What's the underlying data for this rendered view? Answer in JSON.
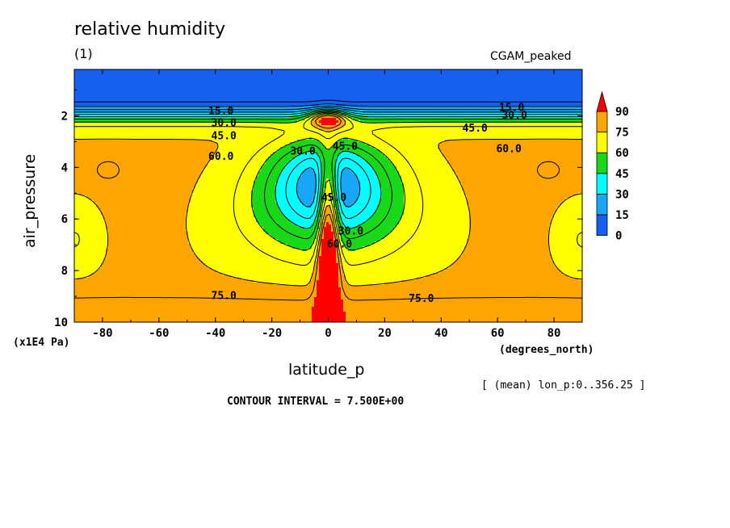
{
  "chart_data": {
    "type": "heatmap",
    "title": "relative humidity",
    "subtitle": "(1)",
    "dataset_label": "CGAM_peaked",
    "xlabel": "latitude_p",
    "xunit": "(degrees_north)",
    "ylabel": "air_pressure",
    "yunit": "(x1E4 Pa)",
    "note": "[ (mean) lon_p:0..356.25 ]",
    "contour_interval": "CONTOUR INTERVAL = 7.500E+00",
    "xlim": [
      -90,
      90
    ],
    "ylim": [
      10,
      0.2
    ],
    "x_ticks": [
      -80,
      -60,
      -40,
      -20,
      0,
      20,
      40,
      60,
      80
    ],
    "x_tick_labels": [
      "-80",
      "-60",
      "-40",
      "-20",
      "0",
      "20",
      "40",
      "60",
      "80"
    ],
    "y_ticks": [
      2,
      4,
      6,
      8,
      10
    ],
    "y_tick_labels": [
      "2",
      "4",
      "6",
      "8",
      "10"
    ],
    "colorbar": {
      "levels": [
        0,
        15,
        30,
        45,
        60,
        75,
        90
      ],
      "labels": [
        "0",
        "15",
        "30",
        "45",
        "60",
        "75",
        "90"
      ],
      "colors": [
        "#1560f0",
        "#18a6f8",
        "#00ffff",
        "#18d818",
        "#ffff00",
        "#ffa500"
      ],
      "over_color": "#ff0000"
    },
    "contour_labels": [
      {
        "text": "15.0",
        "lat": -38,
        "p": 1.85
      },
      {
        "text": "30.0",
        "lat": -37,
        "p": 2.3
      },
      {
        "text": "45.0",
        "lat": -37,
        "p": 2.8
      },
      {
        "text": "60.0",
        "lat": -38,
        "p": 3.6
      },
      {
        "text": "30.0",
        "lat": -9,
        "p": 3.4
      },
      {
        "text": "45.0",
        "lat": 6,
        "p": 3.2
      },
      {
        "text": "45.0",
        "lat": 2,
        "p": 5.2
      },
      {
        "text": "30.0",
        "lat": 8,
        "p": 6.5
      },
      {
        "text": "60.0",
        "lat": 4,
        "p": 7.0
      },
      {
        "text": "15.0",
        "lat": 65,
        "p": 1.7
      },
      {
        "text": "30.0",
        "lat": 66,
        "p": 2.0
      },
      {
        "text": "45.0",
        "lat": 52,
        "p": 2.5
      },
      {
        "text": "60.0",
        "lat": 64,
        "p": 3.3
      },
      {
        "text": "75.0",
        "lat": -37,
        "p": 9.0
      },
      {
        "text": "75.0",
        "lat": 33,
        "p": 9.1
      }
    ]
  }
}
